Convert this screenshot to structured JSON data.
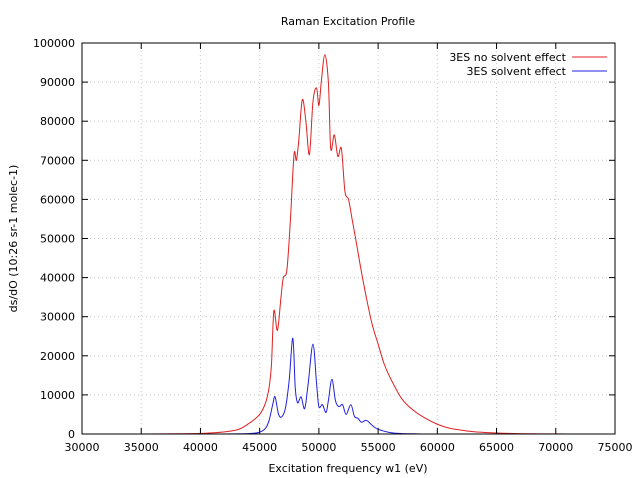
{
  "chart_data": {
    "type": "line",
    "title": "Raman Excitation Profile",
    "xlabel": "Excitation frequency w1 (eV)",
    "ylabel": "ds/dO (10:26 sr-1 molec-1)",
    "xlim": [
      30000,
      75000
    ],
    "ylim": [
      0,
      100000
    ],
    "x_ticks": [
      30000,
      35000,
      40000,
      45000,
      50000,
      55000,
      60000,
      65000,
      70000,
      75000
    ],
    "y_ticks": [
      0,
      10000,
      20000,
      30000,
      40000,
      50000,
      60000,
      70000,
      80000,
      90000,
      100000
    ],
    "grid": true,
    "legend_position": "top-right",
    "series": [
      {
        "name": "3ES no solvent effect",
        "color": "#e02020",
        "x": [
          32000,
          38000,
          41000,
          43000,
          44000,
          45000,
          45500,
          45800,
          46000,
          46200,
          46500,
          46800,
          47000,
          47300,
          47600,
          47900,
          48100,
          48300,
          48600,
          48900,
          49200,
          49500,
          49800,
          50000,
          50200,
          50500,
          50800,
          51000,
          51300,
          51600,
          51900,
          52200,
          52500,
          52800,
          53100,
          53500,
          54000,
          54500,
          55000,
          55500,
          56000,
          57000,
          58000,
          59000,
          60000,
          61000,
          62000,
          63000,
          64000,
          65000,
          66000,
          68000,
          70000,
          72500
        ],
        "y": [
          0,
          50,
          300,
          1000,
          2500,
          5000,
          8000,
          12000,
          18000,
          31500,
          26500,
          35000,
          40000,
          42000,
          55000,
          71500,
          70000,
          75000,
          85500,
          80000,
          71500,
          85000,
          88500,
          84000,
          90000,
          97000,
          90000,
          73000,
          76500,
          71000,
          73000,
          62000,
          60000,
          55000,
          50000,
          43000,
          35000,
          28000,
          23000,
          18000,
          14500,
          9000,
          6000,
          4000,
          2500,
          1500,
          1000,
          600,
          400,
          250,
          150,
          50,
          20,
          0
        ]
      },
      {
        "name": "3ES solvent effect",
        "color": "#2020e0",
        "x": [
          32000,
          40000,
          44000,
          45000,
          45500,
          45800,
          46100,
          46300,
          46600,
          46900,
          47200,
          47500,
          47800,
          48000,
          48200,
          48500,
          48800,
          49100,
          49500,
          49800,
          50000,
          50300,
          50600,
          50800,
          51100,
          51400,
          51700,
          52000,
          52300,
          52700,
          53000,
          53300,
          53600,
          54000,
          54400,
          54800,
          55200,
          55800,
          56500,
          58000,
          60000,
          72500
        ],
        "y": [
          0,
          0,
          100,
          500,
          1500,
          3500,
          7500,
          9500,
          5000,
          4500,
          7000,
          14000,
          24500,
          12000,
          8000,
          9500,
          6500,
          13000,
          23000,
          13000,
          7000,
          7500,
          5500,
          8500,
          14000,
          8500,
          7000,
          7500,
          5000,
          7500,
          4500,
          4000,
          3000,
          3500,
          2500,
          1500,
          1000,
          500,
          200,
          50,
          0,
          0
        ]
      }
    ]
  }
}
